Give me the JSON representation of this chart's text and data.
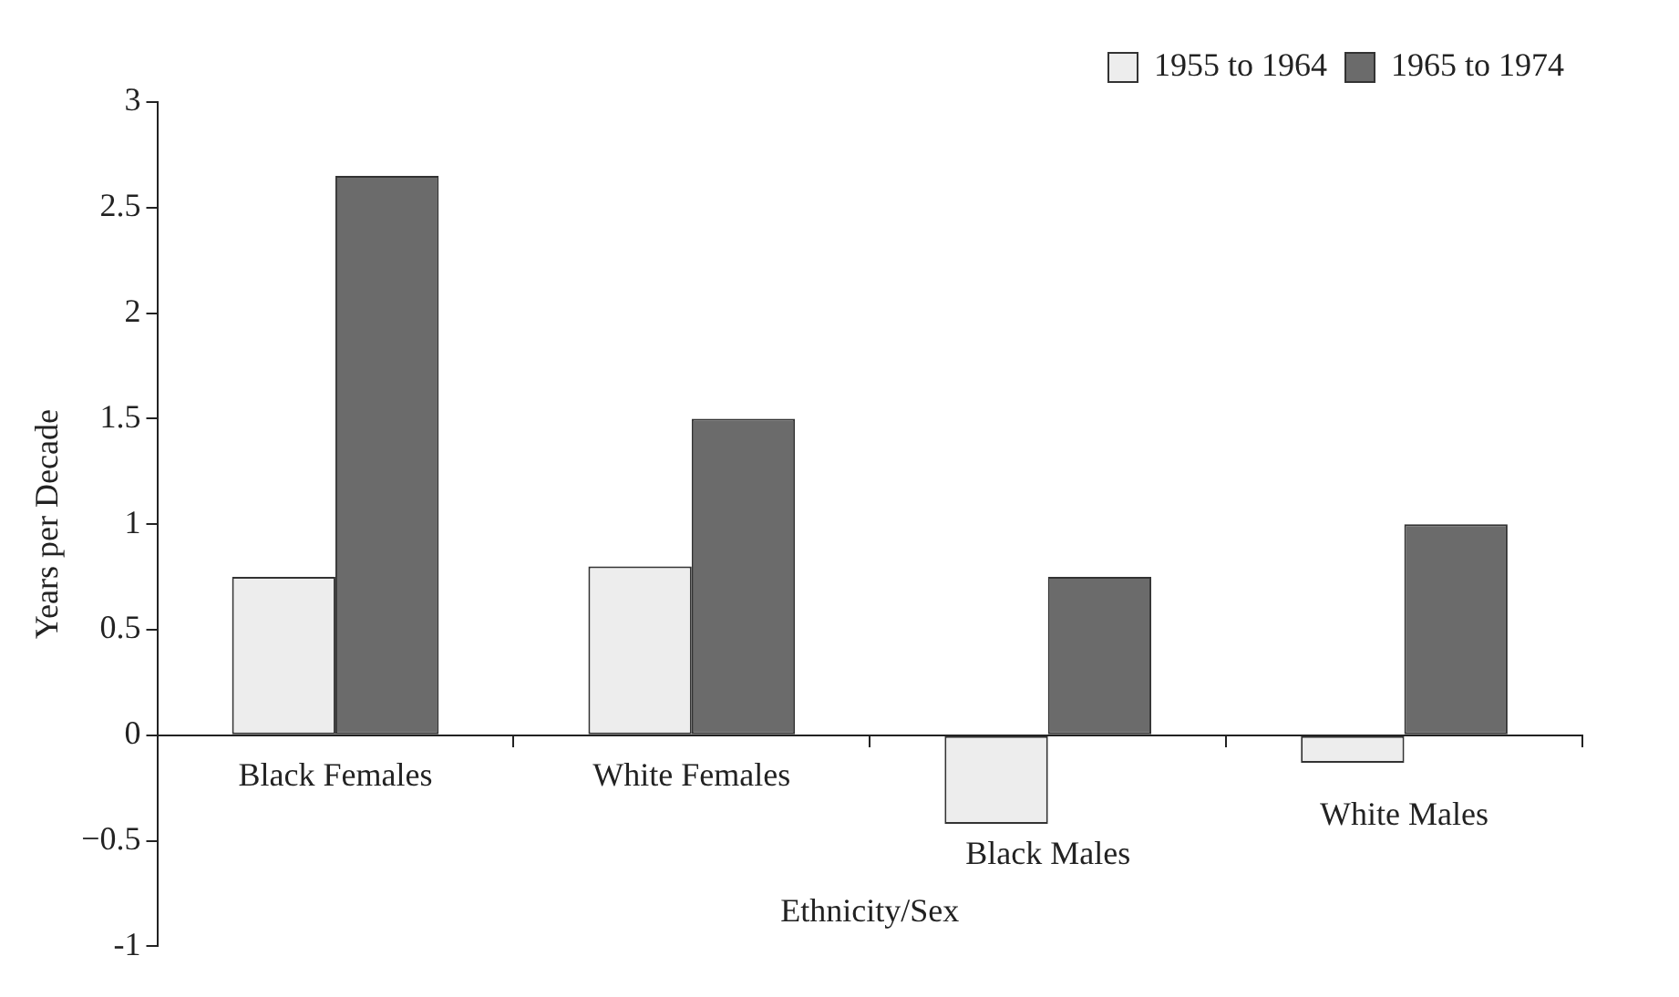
{
  "chart_data": {
    "type": "bar",
    "xlabel": "Ethnicity/Sex",
    "ylabel": "Years per Decade",
    "categories": [
      "Black Females",
      "White Females",
      "Black Males",
      "White Males"
    ],
    "series": [
      {
        "name": "1955 to 1964",
        "color": "#ededed",
        "values": [
          0.75,
          0.8,
          -0.42,
          -0.13
        ]
      },
      {
        "name": "1965 to 1974",
        "color": "#6b6b6b",
        "values": [
          2.65,
          1.5,
          0.75,
          1.0
        ]
      }
    ],
    "ylim": [
      -1,
      3
    ],
    "yticks": [
      -1,
      {
        "value": -0.5,
        "label": "−0.5"
      },
      0,
      0.5,
      1,
      1.5,
      2,
      2.5,
      3
    ],
    "grid": false,
    "legend": "top right"
  }
}
